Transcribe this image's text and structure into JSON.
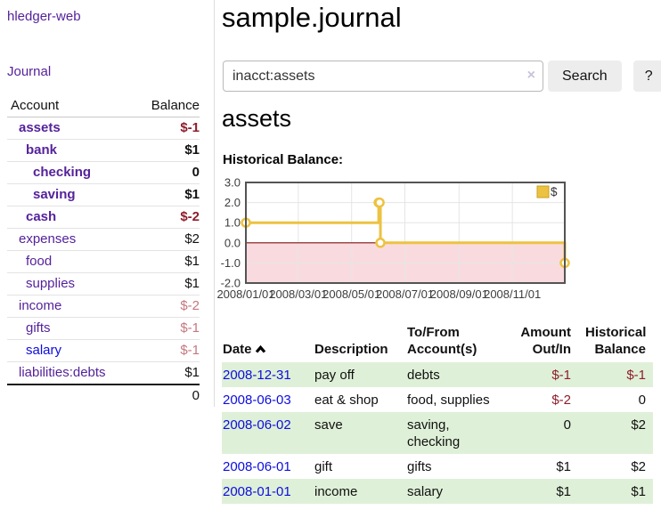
{
  "app": {
    "title": "hledger-web"
  },
  "header": {
    "title": "sample.journal"
  },
  "search": {
    "value": "inacct:assets",
    "clear_icon": "×",
    "button": "Search",
    "help_button": "?"
  },
  "sidebar": {
    "journal_link": "Journal",
    "table": {
      "account_header": "Account",
      "balance_header": "Balance",
      "rows": [
        {
          "account": "assets",
          "balance": "$-1",
          "level": 1,
          "bold": true,
          "neg": "strong"
        },
        {
          "account": "bank",
          "balance": "$1",
          "level": 2,
          "bold": true,
          "neg": "none"
        },
        {
          "account": "checking",
          "balance": "0",
          "level": 3,
          "bold": true,
          "neg": "none"
        },
        {
          "account": "saving",
          "balance": "$1",
          "level": 3,
          "bold": true,
          "neg": "none"
        },
        {
          "account": "cash",
          "balance": "$-2",
          "level": 2,
          "bold": true,
          "neg": "strong"
        },
        {
          "account": "expenses",
          "balance": "$2",
          "level": 1,
          "bold": false,
          "neg": "none"
        },
        {
          "account": "food",
          "balance": "$1",
          "level": 2,
          "bold": false,
          "neg": "none"
        },
        {
          "account": "supplies",
          "balance": "$1",
          "level": 2,
          "bold": false,
          "neg": "none"
        },
        {
          "account": "income",
          "balance": "$-2",
          "level": 1,
          "bold": false,
          "neg": "soft"
        },
        {
          "account": "gifts",
          "balance": "$-1",
          "level": 2,
          "bold": false,
          "neg": "soft"
        },
        {
          "account": "salary",
          "balance": "$-1",
          "level": 2,
          "bold": false,
          "neg": "soft",
          "link_color": "blue"
        },
        {
          "account": "liabilities:debts",
          "balance": "$1",
          "level": 1,
          "bold": false,
          "neg": "none"
        }
      ],
      "total": "0"
    }
  },
  "account_page": {
    "heading": "assets",
    "chart_label": "Historical Balance:"
  },
  "chart_data": {
    "type": "line",
    "title": "Historical Balance",
    "step": "after",
    "series": [
      {
        "name": "$",
        "points": [
          {
            "date": "2008/01/01",
            "day": 0,
            "value": 1.0
          },
          {
            "date": "2008/06/01",
            "day": 152,
            "value": 2.0
          },
          {
            "date": "2008/06/02",
            "day": 153,
            "value": 2.0
          },
          {
            "date": "2008/06/03",
            "day": 154,
            "value": 0.0
          },
          {
            "date": "2008/12/31",
            "day": 365,
            "value": -1.0
          }
        ]
      }
    ],
    "x_ticks": [
      {
        "label": "2008/01/01",
        "day": 0
      },
      {
        "label": "2008/03/01",
        "day": 60
      },
      {
        "label": "2008/05/01",
        "day": 121
      },
      {
        "label": "2008/07/01",
        "day": 182
      },
      {
        "label": "2008/09/01",
        "day": 244
      },
      {
        "label": "2008/11/01",
        "day": 305
      }
    ],
    "y_ticks": [
      3.0,
      2.0,
      1.0,
      0.0,
      -1.0,
      -2.0
    ],
    "xlim_days": [
      0,
      365
    ],
    "ylim": [
      -2.0,
      3.0
    ],
    "legend": {
      "label": "$",
      "position": "top-right"
    },
    "grid": true,
    "line_color": "#edc240",
    "legend_box_border": "#c9a227",
    "zero_line_color": "#7f1010",
    "negative_region_color": "#f9dbdf",
    "grid_color": "#e5e5e5",
    "border_color": "#545454",
    "tick_text_color": "#3d3d3d"
  },
  "register": {
    "headers": {
      "date": "Date",
      "description": "Description",
      "accounts": "To/From Account(s)",
      "amount": "Amount Out/In",
      "balance": "Historical Balance"
    },
    "rows": [
      {
        "date": "2008-12-31",
        "description": "pay off",
        "accounts": "debts",
        "amount": "$-1",
        "amount_neg": true,
        "balance": "$-1",
        "balance_neg": true
      },
      {
        "date": "2008-06-03",
        "description": "eat & shop",
        "accounts": "food, supplies",
        "amount": "$-2",
        "amount_neg": true,
        "balance": "0",
        "balance_neg": false
      },
      {
        "date": "2008-06-02",
        "description": "save",
        "accounts": "saving, checking",
        "amount": "0",
        "amount_neg": false,
        "balance": "$2",
        "balance_neg": false
      },
      {
        "date": "2008-06-01",
        "description": "gift",
        "accounts": "gifts",
        "amount": "$1",
        "amount_neg": false,
        "balance": "$2",
        "balance_neg": false
      },
      {
        "date": "2008-01-01",
        "description": "income",
        "accounts": "salary",
        "amount": "$1",
        "amount_neg": false,
        "balance": "$1",
        "balance_neg": false
      }
    ]
  },
  "colors": {
    "link_purple": "#55229b",
    "link_blue": "#0d0ddf",
    "negative_strong": "#8f1d2b",
    "negative_soft": "#c4777f",
    "row_green": "#dff0d8"
  }
}
